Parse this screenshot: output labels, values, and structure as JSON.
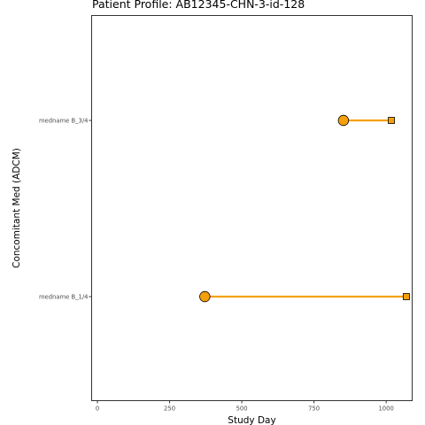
{
  "chart_data": {
    "type": "timeline",
    "title": "Patient Profile:  AB12345-CHN-3-id-128",
    "xlabel": "Study Day",
    "ylabel": "Concomitant Med (ADCM)",
    "xlim": [
      -20,
      1090
    ],
    "xticks": [
      0,
      250,
      500,
      750,
      1000
    ],
    "xtick_labels": [
      "0",
      "250",
      "500",
      "750",
      "1000"
    ],
    "categories": [
      "medname B_3/4",
      "medname B_1/4"
    ],
    "segments": [
      {
        "category": "medname B_3/4",
        "start": 852,
        "end": 1018
      },
      {
        "category": "medname B_1/4",
        "start": 372,
        "end": 1070
      }
    ],
    "start_marker": "circle",
    "end_marker": "square",
    "line_color": "#f5a00a",
    "marker_fill": "#f5a00a",
    "marker_stroke": "#000000",
    "grid": false,
    "legend": "none"
  }
}
